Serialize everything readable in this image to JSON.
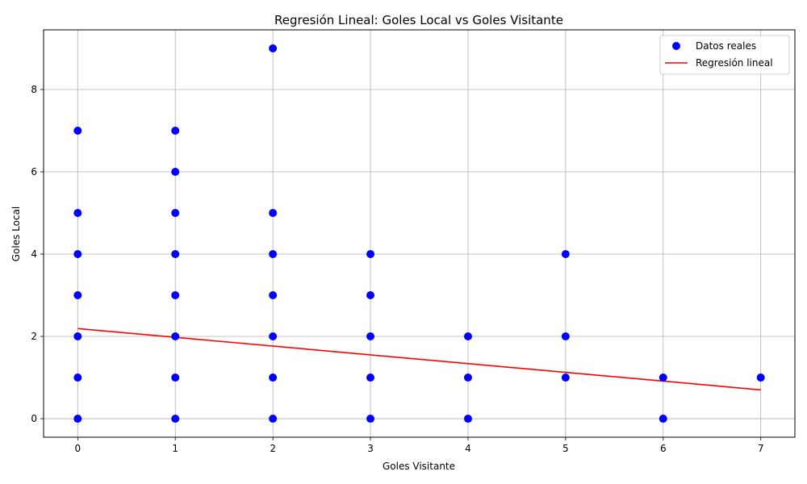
{
  "chart_data": {
    "type": "scatter",
    "title": "Regresión Lineal: Goles Local vs Goles Visitante",
    "xlabel": "Goles Visitante",
    "ylabel": "Goles Local",
    "xlim": [
      -0.35,
      7.35
    ],
    "ylim": [
      -0.45,
      9.45
    ],
    "xticks": [
      0,
      1,
      2,
      3,
      4,
      5,
      6,
      7
    ],
    "yticks": [
      0,
      2,
      4,
      6,
      8
    ],
    "grid": true,
    "legend_position": "top-right",
    "series": [
      {
        "name": "Datos reales",
        "kind": "scatter",
        "color": "#0000ff",
        "points": [
          [
            0,
            0
          ],
          [
            0,
            1
          ],
          [
            0,
            2
          ],
          [
            0,
            3
          ],
          [
            0,
            4
          ],
          [
            0,
            5
          ],
          [
            0,
            7
          ],
          [
            1,
            0
          ],
          [
            1,
            1
          ],
          [
            1,
            2
          ],
          [
            1,
            3
          ],
          [
            1,
            4
          ],
          [
            1,
            5
          ],
          [
            1,
            6
          ],
          [
            1,
            7
          ],
          [
            2,
            0
          ],
          [
            2,
            1
          ],
          [
            2,
            2
          ],
          [
            2,
            3
          ],
          [
            2,
            4
          ],
          [
            2,
            5
          ],
          [
            2,
            9
          ],
          [
            3,
            0
          ],
          [
            3,
            1
          ],
          [
            3,
            2
          ],
          [
            3,
            3
          ],
          [
            3,
            4
          ],
          [
            4,
            0
          ],
          [
            4,
            1
          ],
          [
            4,
            2
          ],
          [
            5,
            1
          ],
          [
            5,
            2
          ],
          [
            5,
            4
          ],
          [
            6,
            0
          ],
          [
            6,
            1
          ],
          [
            7,
            1
          ]
        ]
      },
      {
        "name": "Regresión lineal",
        "kind": "line",
        "color": "#ff0000",
        "x": [
          0,
          7
        ],
        "y": [
          2.19,
          0.7
        ]
      }
    ]
  }
}
